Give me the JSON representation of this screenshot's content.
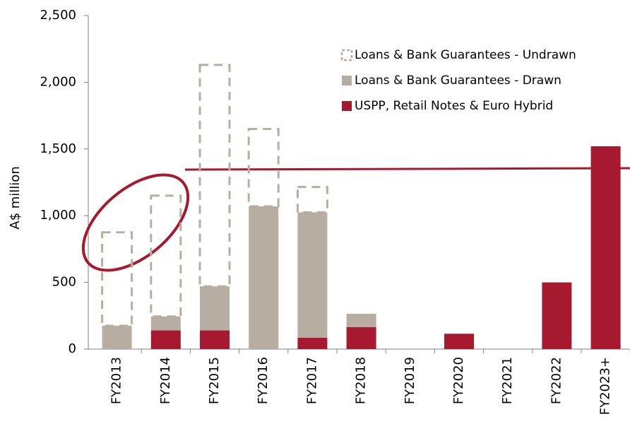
{
  "chart_data": {
    "type": "stacked_bar",
    "y_label": "A$ million",
    "categories": [
      "FY2013",
      "FY2014",
      "FY2015",
      "FY2016",
      "FY2017",
      "FY2018",
      "FY2019",
      "FY2020",
      "FY2021",
      "FY2022",
      "FY2023+"
    ],
    "series": [
      {
        "name": "USPP, Retail Notes & Euro Hybrid",
        "color": "#a6192e",
        "dashed": false,
        "values": [
          0,
          140,
          140,
          0,
          85,
          165,
          0,
          115,
          0,
          500,
          1520
        ]
      },
      {
        "name": "Loans & Bank Guarantees - Drawn",
        "color": "#b7ada0",
        "dashed": false,
        "values": [
          175,
          105,
          330,
          1070,
          940,
          100,
          0,
          0,
          0,
          0,
          0
        ]
      },
      {
        "name": "Loans & Bank Guarantees - Undrawn",
        "color": "#b7ada0",
        "dashed": true,
        "values": [
          700,
          905,
          1660,
          580,
          190,
          0,
          0,
          0,
          0,
          0,
          0
        ]
      }
    ],
    "ylim": [
      0,
      2500
    ],
    "yticks": [
      0,
      500,
      {
        "value": 1000,
        "label": "1,000"
      },
      {
        "value": 1500,
        "label": "1,500"
      },
      {
        "value": 2000,
        "label": "2,000"
      },
      {
        "value": 2500,
        "label": "2,500"
      }
    ],
    "grid": false
  }
}
